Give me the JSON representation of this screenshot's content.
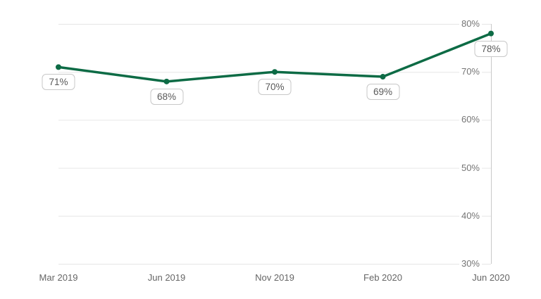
{
  "chart_data": {
    "type": "line",
    "title": "",
    "xlabel": "",
    "ylabel": "",
    "categories": [
      "Mar 2019",
      "Jun 2019",
      "Nov 2019",
      "Feb 2020",
      "Jun 2020"
    ],
    "series": [
      {
        "name": "percentage",
        "values": [
          71,
          68,
          70,
          69,
          78
        ],
        "data_labels": [
          "71%",
          "68%",
          "70%",
          "69%",
          "78%"
        ]
      }
    ],
    "y_axis": {
      "side": "right",
      "min": 30,
      "max": 80,
      "step": 10,
      "tick_labels_top_to_bottom": [
        "80%",
        "70%",
        "60%",
        "50%",
        "40%",
        "30%"
      ]
    },
    "grid": true,
    "legend_position": "none",
    "colors": {
      "line": "#0d6b45",
      "marker": "#0d6b45",
      "gridline": "#e6e6e6",
      "axis_line": "#c9c9c9",
      "y_tick_text": "#757575",
      "x_tick_text": "#666666",
      "callout_text": "#595959",
      "callout_border": "#c8c8c8",
      "callout_background": "#ffffff",
      "background": "#ffffff"
    }
  }
}
